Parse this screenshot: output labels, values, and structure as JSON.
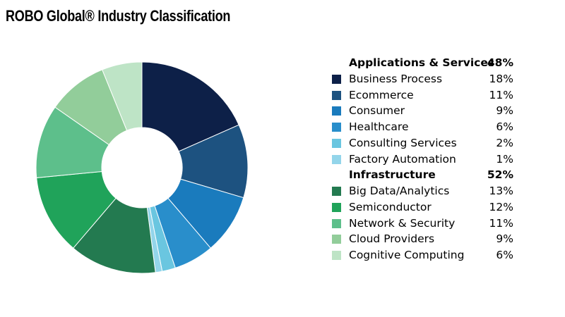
{
  "chart_data": {
    "type": "pie",
    "title": "ROBO Global® Industry Classification",
    "donut": true,
    "groups": [
      {
        "name": "Applications & Services",
        "value_label": "48%",
        "items": [
          {
            "name": "Business Process",
            "value": 18,
            "value_label": "18%",
            "color": "#0d2048"
          },
          {
            "name": "Ecommerce",
            "value": 11,
            "value_label": "11%",
            "color": "#1d5280"
          },
          {
            "name": "Consumer",
            "value": 9,
            "value_label": "9%",
            "color": "#1a7bbd"
          },
          {
            "name": "Healthcare",
            "value": 6,
            "value_label": "6%",
            "color": "#298ecb"
          },
          {
            "name": "Consulting Services",
            "value": 2,
            "value_label": "2%",
            "color": "#6ac6e0"
          },
          {
            "name": "Factory Automation",
            "value": 1,
            "value_label": "1%",
            "color": "#93d5ea"
          }
        ]
      },
      {
        "name": "Infrastructure",
        "value_label": "52%",
        "items": [
          {
            "name": "Big Data/Analytics",
            "value": 13,
            "value_label": "13%",
            "color": "#237a50"
          },
          {
            "name": "Semiconductor",
            "value": 12,
            "value_label": "12%",
            "color": "#20a35a"
          },
          {
            "name": "Network & Security",
            "value": 11,
            "value_label": "11%",
            "color": "#5dbf8b"
          },
          {
            "name": "Cloud Providers",
            "value": 9,
            "value_label": "9%",
            "color": "#92cd9a"
          },
          {
            "name": "Cognitive Computing",
            "value": 6,
            "value_label": "6%",
            "color": "#bee4c6"
          }
        ]
      }
    ],
    "legend_position": "right"
  }
}
